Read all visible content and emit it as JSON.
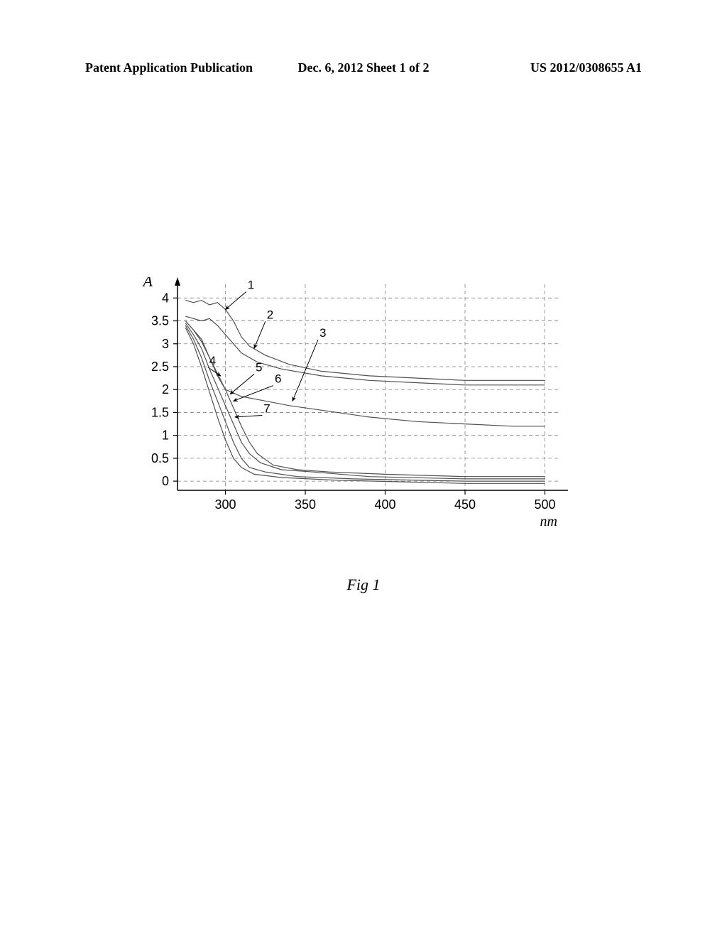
{
  "header": {
    "left": "Patent Application Publication",
    "center": "Dec. 6, 2012  Sheet 1 of 2",
    "right": "US 2012/0308655 A1"
  },
  "caption": "Fig 1",
  "chart": {
    "type": "line",
    "background_color": "#ffffff",
    "grid_color": "#808080",
    "axis_color": "#000000",
    "text_color": "#000000",
    "y_label": "A",
    "y_label_fontstyle": "italic",
    "y_label_fontsize": 22,
    "x_label": "nm",
    "x_label_fontstyle": "italic",
    "x_label_fontsize": 20,
    "tick_fontsize": 18,
    "xlim": [
      270,
      510
    ],
    "ylim": [
      -0.2,
      4.3
    ],
    "x_ticks": [
      300,
      350,
      400,
      450,
      500
    ],
    "y_ticks": [
      0,
      0.5,
      1,
      1.5,
      2,
      2.5,
      3,
      3.5,
      4
    ],
    "line_width": 1.2,
    "line_color": "#505050",
    "series": [
      {
        "label": "1",
        "label_x": 313,
        "label_y": 4.2,
        "arrow_to_x": 300,
        "arrow_to_y": 3.75,
        "points": [
          [
            275,
            3.95
          ],
          [
            280,
            3.9
          ],
          [
            285,
            3.95
          ],
          [
            290,
            3.85
          ],
          [
            295,
            3.9
          ],
          [
            300,
            3.75
          ],
          [
            305,
            3.5
          ],
          [
            310,
            3.15
          ],
          [
            315,
            2.95
          ],
          [
            325,
            2.75
          ],
          [
            340,
            2.55
          ],
          [
            360,
            2.4
          ],
          [
            390,
            2.3
          ],
          [
            420,
            2.25
          ],
          [
            450,
            2.2
          ],
          [
            480,
            2.2
          ],
          [
            500,
            2.2
          ]
        ]
      },
      {
        "label": "2",
        "label_x": 325,
        "label_y": 3.55,
        "arrow_to_x": 318,
        "arrow_to_y": 2.9,
        "points": [
          [
            275,
            3.6
          ],
          [
            280,
            3.55
          ],
          [
            285,
            3.5
          ],
          [
            290,
            3.55
          ],
          [
            295,
            3.4
          ],
          [
            300,
            3.2
          ],
          [
            305,
            3.0
          ],
          [
            310,
            2.8
          ],
          [
            320,
            2.6
          ],
          [
            335,
            2.45
          ],
          [
            360,
            2.3
          ],
          [
            390,
            2.2
          ],
          [
            420,
            2.15
          ],
          [
            450,
            2.1
          ],
          [
            480,
            2.1
          ],
          [
            500,
            2.1
          ]
        ]
      },
      {
        "label": "3",
        "label_x": 358,
        "label_y": 3.15,
        "arrow_to_x": 342,
        "arrow_to_y": 1.75,
        "points": [
          [
            275,
            3.5
          ],
          [
            280,
            3.3
          ],
          [
            285,
            3.1
          ],
          [
            290,
            2.7
          ],
          [
            295,
            2.3
          ],
          [
            300,
            2.0
          ],
          [
            310,
            1.85
          ],
          [
            325,
            1.75
          ],
          [
            340,
            1.65
          ],
          [
            360,
            1.55
          ],
          [
            390,
            1.4
          ],
          [
            420,
            1.3
          ],
          [
            450,
            1.25
          ],
          [
            480,
            1.2
          ],
          [
            500,
            1.2
          ]
        ]
      },
      {
        "label": "4",
        "label_x": 289,
        "label_y": 2.55,
        "arrow_to_x": 297,
        "arrow_to_y": 2.3,
        "points": [
          [
            275,
            3.5
          ],
          [
            280,
            3.3
          ],
          [
            285,
            3.05
          ],
          [
            290,
            2.7
          ],
          [
            295,
            2.35
          ],
          [
            300,
            2.0
          ],
          [
            305,
            1.6
          ],
          [
            310,
            1.2
          ],
          [
            315,
            0.85
          ],
          [
            320,
            0.6
          ],
          [
            330,
            0.35
          ],
          [
            345,
            0.25
          ],
          [
            365,
            0.2
          ],
          [
            400,
            0.15
          ],
          [
            450,
            0.1
          ],
          [
            500,
            0.1
          ]
        ]
      },
      {
        "label": "5",
        "label_x": 318,
        "label_y": 2.4,
        "arrow_to_x": 303,
        "arrow_to_y": 1.9,
        "points": [
          [
            275,
            3.45
          ],
          [
            280,
            3.2
          ],
          [
            285,
            2.9
          ],
          [
            290,
            2.45
          ],
          [
            295,
            2.05
          ],
          [
            300,
            1.65
          ],
          [
            305,
            1.25
          ],
          [
            310,
            0.85
          ],
          [
            315,
            0.6
          ],
          [
            322,
            0.4
          ],
          [
            335,
            0.25
          ],
          [
            355,
            0.2
          ],
          [
            390,
            0.1
          ],
          [
            450,
            0.05
          ],
          [
            500,
            0.05
          ]
        ]
      },
      {
        "label": "6",
        "label_x": 330,
        "label_y": 2.15,
        "arrow_to_x": 305,
        "arrow_to_y": 1.75,
        "points": [
          [
            275,
            3.4
          ],
          [
            280,
            3.1
          ],
          [
            285,
            2.7
          ],
          [
            290,
            2.2
          ],
          [
            295,
            1.75
          ],
          [
            300,
            1.3
          ],
          [
            305,
            0.85
          ],
          [
            310,
            0.5
          ],
          [
            315,
            0.3
          ],
          [
            325,
            0.2
          ],
          [
            345,
            0.1
          ],
          [
            380,
            0.05
          ],
          [
            450,
            0.0
          ],
          [
            500,
            0.0
          ]
        ]
      },
      {
        "label": "7",
        "label_x": 323,
        "label_y": 1.5,
        "arrow_to_x": 306,
        "arrow_to_y": 1.4,
        "points": [
          [
            275,
            3.35
          ],
          [
            280,
            3.0
          ],
          [
            285,
            2.5
          ],
          [
            290,
            1.95
          ],
          [
            295,
            1.4
          ],
          [
            300,
            0.9
          ],
          [
            305,
            0.5
          ],
          [
            310,
            0.3
          ],
          [
            318,
            0.15
          ],
          [
            335,
            0.08
          ],
          [
            370,
            0.02
          ],
          [
            450,
            -0.05
          ],
          [
            500,
            -0.05
          ]
        ]
      }
    ]
  }
}
